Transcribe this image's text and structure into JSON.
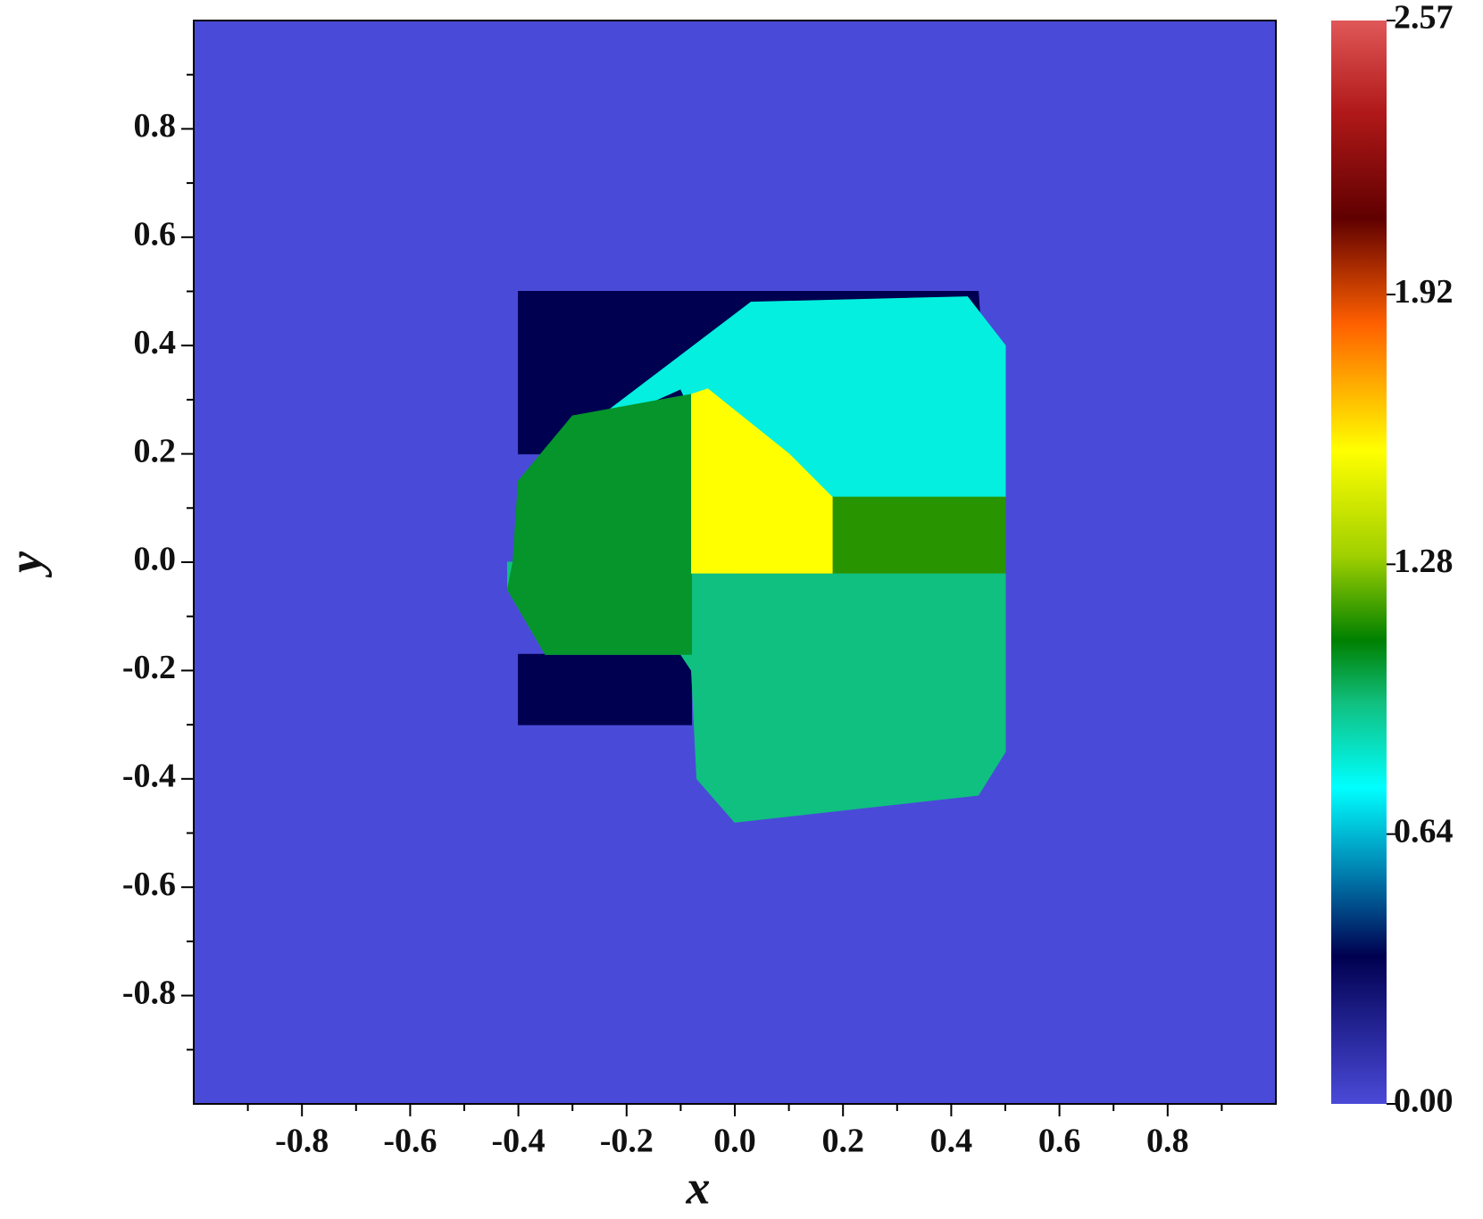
{
  "chart_data": {
    "type": "heatmap",
    "x_label": "x",
    "y_label": "y",
    "xlim": [
      -1,
      1
    ],
    "ylim": [
      -1,
      1
    ],
    "xticks": [
      -0.8,
      -0.6,
      -0.4,
      -0.2,
      {
        "value": 0,
        "label": "0.0"
      },
      0.2,
      0.4,
      0.6,
      0.8
    ],
    "yticks": [
      -0.8,
      -0.6,
      -0.4,
      -0.2,
      {
        "value": 0,
        "label": "0.0"
      },
      0.2,
      0.4,
      0.6,
      0.8
    ],
    "xminorticks": [
      -0.9,
      -0.7,
      -0.5,
      -0.3,
      -0.1,
      0.1,
      0.3,
      0.5,
      0.7,
      0.9
    ],
    "yminorticks": [
      -0.9,
      -0.7,
      -0.5,
      -0.3,
      -0.1,
      0.1,
      0.3,
      0.5,
      0.7,
      0.9
    ],
    "clim": [
      0,
      2.57
    ],
    "cticks": [
      {
        "value": 0,
        "label": "0.00"
      },
      0.64,
      1.28,
      1.92,
      2.57
    ],
    "colormap": [
      [
        0,
        "#4a4ad8"
      ],
      [
        0.15,
        "#2a2aa0"
      ],
      [
        0.35,
        "#000050"
      ],
      [
        0.55,
        "#0080b0"
      ],
      [
        0.75,
        "#00ffff"
      ],
      [
        0.95,
        "#10c080"
      ],
      [
        1.1,
        "#008000"
      ],
      [
        1.3,
        "#a0d000"
      ],
      [
        1.55,
        "#ffff00"
      ],
      [
        1.85,
        "#ff6000"
      ],
      [
        2.1,
        "#600000"
      ],
      [
        2.35,
        "#b01818"
      ],
      [
        2.57,
        "#e05858"
      ]
    ],
    "regions": [
      {
        "x": [
          -1,
          1,
          1,
          -1
        ],
        "y": [
          -1,
          -1,
          1,
          1
        ],
        "value": 0
      },
      {
        "x": [
          -0.4,
          0.45,
          0.47,
          -0.4
        ],
        "y": [
          0.5,
          0.5,
          0.2,
          0.2
        ],
        "value": 0.35
      },
      {
        "x": [
          -0.4,
          -0.08,
          -0.08,
          -0.4
        ],
        "y": [
          -0.3,
          -0.3,
          -0.17,
          -0.17
        ],
        "value": 0.35
      },
      {
        "x": [
          0.03,
          0.43,
          0.5,
          0.5,
          0.0,
          -0.1,
          -0.3
        ],
        "y": [
          0.48,
          0.49,
          0.4,
          0.1,
          0.1,
          0.32,
          0.23
        ],
        "value": 0.8
      },
      {
        "x": [
          -0.42,
          -0.35,
          -0.1,
          -0.08,
          -0.07,
          0.0,
          0.45,
          0.5,
          0.5,
          -0.42
        ],
        "y": [
          -0.05,
          -0.17,
          -0.17,
          -0.2,
          -0.4,
          -0.48,
          -0.43,
          -0.35,
          0.0,
          0.0
        ],
        "value": 0.95
      },
      {
        "x": [
          -0.42,
          -0.41,
          -0.4,
          -0.3,
          -0.08,
          -0.08,
          -0.35
        ],
        "y": [
          -0.05,
          0.0,
          0.15,
          0.27,
          0.31,
          -0.17,
          -0.17
        ],
        "value": 1.05
      },
      {
        "x": [
          0.18,
          0.5,
          0.5,
          0.0
        ],
        "y": [
          0.12,
          0.12,
          -0.02,
          -0.02
        ],
        "value": 1.15
      },
      {
        "x": [
          -0.08,
          -0.05,
          0.1,
          0.18,
          0.18,
          -0.08
        ],
        "y": [
          0.31,
          0.32,
          0.2,
          0.12,
          -0.02,
          -0.02
        ],
        "value": 1.55
      }
    ]
  }
}
